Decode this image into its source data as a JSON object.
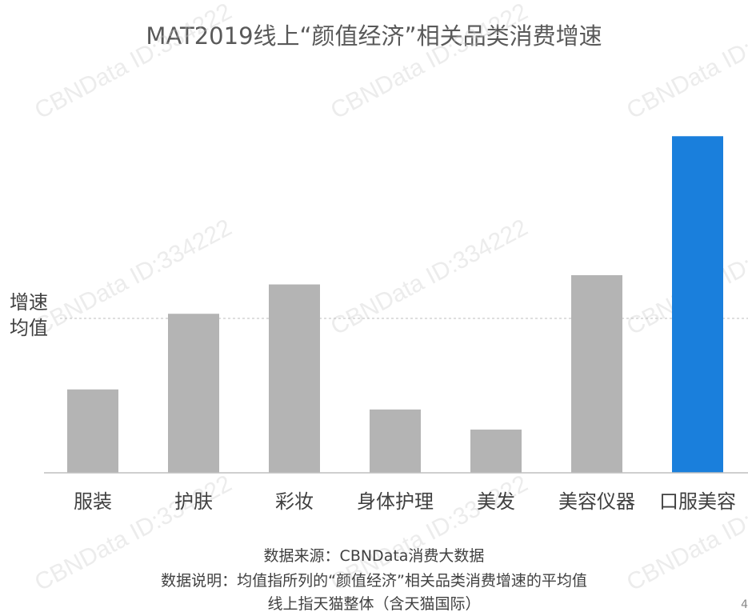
{
  "chart_data": {
    "type": "bar",
    "title": "MAT2019线上“颜值经济”相关品类消费增速",
    "categories": [
      "服装",
      "护肤",
      "彩妆",
      "身体护理",
      "美发",
      "美容仪器",
      "口服美容"
    ],
    "values": [
      0.54,
      1.03,
      1.22,
      0.41,
      0.28,
      1.28,
      2.18
    ],
    "reference_line": {
      "label_line1": "增速",
      "label_line2": "均值",
      "value": 1.0,
      "style": "dashed"
    },
    "xlabel": "",
    "ylabel": "",
    "ylim": [
      0,
      2.3
    ],
    "grid": false,
    "colors": {
      "default": "#b4b4b4",
      "highlight": "#1a7fdc",
      "highlight_category": "口服美容"
    }
  },
  "notes": {
    "source": "数据来源：CBNData消费大数据",
    "explanation": "数据说明：均值指所列的“颜值经济”相关品类消费增速的平均值",
    "scope": "线上指天猫整体（含天猫国际）"
  },
  "watermark": "CBNData ID:334222",
  "page_number": "4"
}
